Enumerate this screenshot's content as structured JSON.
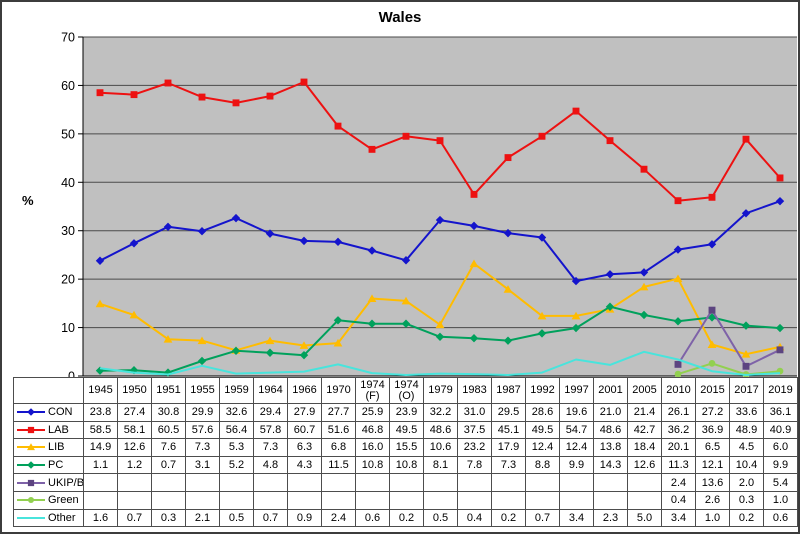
{
  "chart_data": {
    "type": "line",
    "title": "Wales",
    "ylabel": "%",
    "ylim": [
      0,
      70
    ],
    "yticks": [
      0,
      10,
      20,
      30,
      40,
      50,
      60,
      70
    ],
    "grid": "horizontal",
    "legend_position": "data-table-left",
    "plot_bg": "#c0c0c0",
    "gridline_color": "#4a4a4a",
    "categories": [
      "1945",
      "1950",
      "1951",
      "1955",
      "1959",
      "1964",
      "1966",
      "1970",
      "1974\n(F)",
      "1974\n(O)",
      "1979",
      "1983",
      "1987",
      "1992",
      "1997",
      "2001",
      "2005",
      "2010",
      "2015",
      "2017",
      "2019"
    ],
    "series": [
      {
        "name": "CON",
        "color": "#1414cc",
        "marker": "diamond",
        "values": [
          23.8,
          27.4,
          30.8,
          29.9,
          32.6,
          29.4,
          27.9,
          27.7,
          25.9,
          23.9,
          32.2,
          31.0,
          29.5,
          28.6,
          19.6,
          21.0,
          21.4,
          26.1,
          27.2,
          33.6,
          36.1
        ]
      },
      {
        "name": "LAB",
        "color": "#ed1111",
        "marker": "square",
        "values": [
          58.5,
          58.1,
          60.5,
          57.6,
          56.4,
          57.8,
          60.7,
          51.6,
          46.8,
          49.5,
          48.6,
          37.5,
          45.1,
          49.5,
          54.7,
          48.6,
          42.7,
          36.2,
          36.9,
          48.9,
          40.9
        ]
      },
      {
        "name": "LIB",
        "color": "#ffbc00",
        "marker": "triangle",
        "values": [
          14.9,
          12.6,
          7.6,
          7.3,
          5.3,
          7.3,
          6.3,
          6.8,
          16.0,
          15.5,
          10.6,
          23.2,
          17.9,
          12.4,
          12.4,
          13.8,
          18.4,
          20.1,
          6.5,
          4.5,
          6.0
        ]
      },
      {
        "name": "PC",
        "color": "#00a15c",
        "marker": "diamond",
        "values": [
          1.1,
          1.2,
          0.7,
          3.1,
          5.2,
          4.8,
          4.3,
          11.5,
          10.8,
          10.8,
          8.1,
          7.8,
          7.3,
          8.8,
          9.9,
          14.3,
          12.6,
          11.3,
          12.1,
          10.4,
          9.9
        ]
      },
      {
        "name": "UKIP/Br",
        "color": "#7e62a8",
        "marker_color": "#5c4480",
        "marker": "square",
        "values": [
          null,
          null,
          null,
          null,
          null,
          null,
          null,
          null,
          null,
          null,
          null,
          null,
          null,
          null,
          null,
          null,
          null,
          2.4,
          13.6,
          2.0,
          5.4
        ]
      },
      {
        "name": "Green",
        "color": "#92d050",
        "marker": "circle",
        "values": [
          null,
          null,
          null,
          null,
          null,
          null,
          null,
          null,
          null,
          null,
          null,
          null,
          null,
          null,
          null,
          null,
          null,
          0.4,
          2.6,
          0.3,
          1.0
        ]
      },
      {
        "name": "Other",
        "color": "#48e4dc",
        "marker": "none",
        "values": [
          1.6,
          0.7,
          0.3,
          2.1,
          0.5,
          0.7,
          0.9,
          2.4,
          0.6,
          0.2,
          0.5,
          0.4,
          0.2,
          0.7,
          3.4,
          2.3,
          5.0,
          3.4,
          1.0,
          0.2,
          0.6
        ]
      }
    ]
  }
}
